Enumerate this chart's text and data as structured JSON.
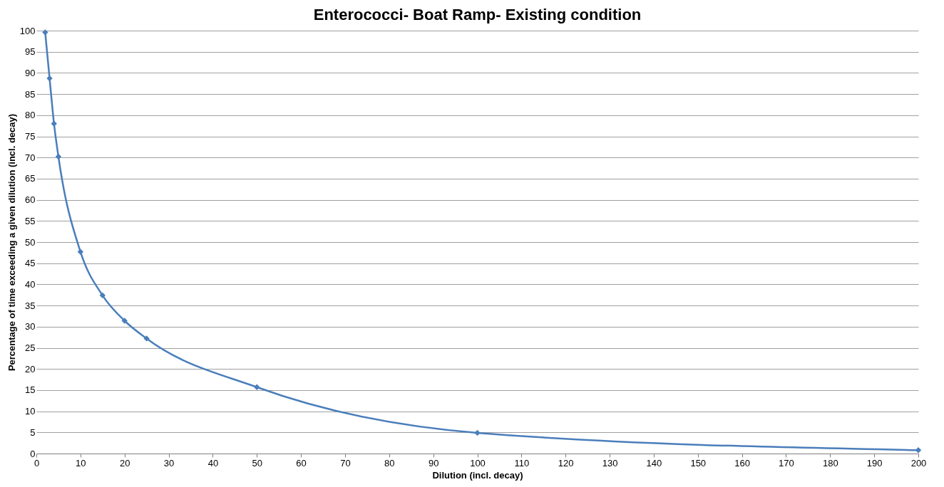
{
  "chart_data": {
    "type": "line",
    "title": "Enterococci- Boat Ramp- Existing condition",
    "xlabel": "Dilution (incl. decay)",
    "ylabel": "Percentage of time exceeding a given dilution (incl. decay)",
    "x": [
      2,
      3,
      4,
      5,
      10,
      15,
      20,
      25,
      50,
      100,
      200
    ],
    "series": [
      {
        "color": "#4a7ebb",
        "values": [
          99.6,
          88.7,
          78,
          70.2,
          47.7,
          37.4,
          31.4,
          27.2,
          15.7,
          4.9,
          0.8
        ]
      }
    ],
    "xlim": [
      0,
      200
    ],
    "xticks": [
      0,
      10,
      20,
      30,
      40,
      50,
      60,
      70,
      80,
      90,
      100,
      110,
      120,
      130,
      140,
      150,
      160,
      170,
      180,
      190,
      200
    ],
    "ylim": [
      0,
      100
    ],
    "yticks": [
      0,
      5,
      10,
      15,
      20,
      25,
      30,
      35,
      40,
      45,
      50,
      55,
      60,
      65,
      70,
      75,
      80,
      85,
      90,
      95,
      100
    ],
    "grid": "y",
    "marker": "diamond",
    "line_style": "solid"
  }
}
